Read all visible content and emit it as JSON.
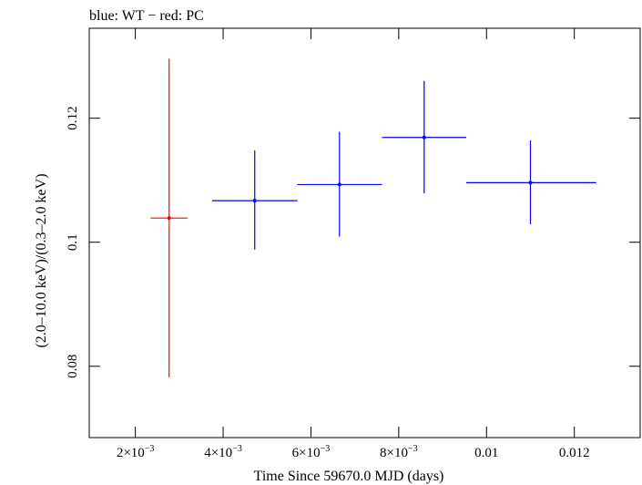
{
  "chart_data": {
    "type": "scatter",
    "title": "blue: WT − red: PC",
    "xlabel": "Time Since 59670.0 MJD (days)",
    "ylabel": "(2.0–10.0 keV)/(0.3–2.0 keV)",
    "xlim": [
      0.00095,
      0.0135
    ],
    "ylim": [
      0.0685,
      0.1345
    ],
    "x_ticks": [
      {
        "value": 0.002,
        "mantissa": "2×10",
        "exp": "−3"
      },
      {
        "value": 0.004,
        "mantissa": "4×10",
        "exp": "−3"
      },
      {
        "value": 0.006,
        "mantissa": "6×10",
        "exp": "−3"
      },
      {
        "value": 0.008,
        "mantissa": "8×10",
        "exp": "−3"
      },
      {
        "value": 0.01,
        "mantissa": "0.01",
        "exp": ""
      },
      {
        "value": 0.012,
        "mantissa": "0.012",
        "exp": ""
      }
    ],
    "y_ticks": [
      {
        "value": 0.08,
        "label": "0.08"
      },
      {
        "value": 0.1,
        "label": "0.1"
      },
      {
        "value": 0.12,
        "label": "0.12"
      }
    ],
    "series": [
      {
        "color": "#ff0000",
        "points": [
          {
            "x": 0.00277,
            "y": 0.1039,
            "x_lo": 0.00235,
            "x_hi": 0.00319,
            "y_lo": 0.0782,
            "y_hi": 0.1296
          }
        ]
      },
      {
        "color": "#0000ff",
        "points": [
          {
            "x": 0.00472,
            "y": 0.1067,
            "x_lo": 0.00375,
            "x_hi": 0.00569,
            "y_lo": 0.0988,
            "y_hi": 0.1148
          },
          {
            "x": 0.00665,
            "y": 0.1093,
            "x_lo": 0.00569,
            "x_hi": 0.00762,
            "y_lo": 0.1009,
            "y_hi": 0.1178
          },
          {
            "x": 0.00858,
            "y": 0.1169,
            "x_lo": 0.00762,
            "x_hi": 0.00954,
            "y_lo": 0.1079,
            "y_hi": 0.126
          },
          {
            "x": 0.011,
            "y": 0.1096,
            "x_lo": 0.00954,
            "x_hi": 0.0125,
            "y_lo": 0.1029,
            "y_hi": 0.1164
          }
        ]
      }
    ],
    "grid": false
  }
}
